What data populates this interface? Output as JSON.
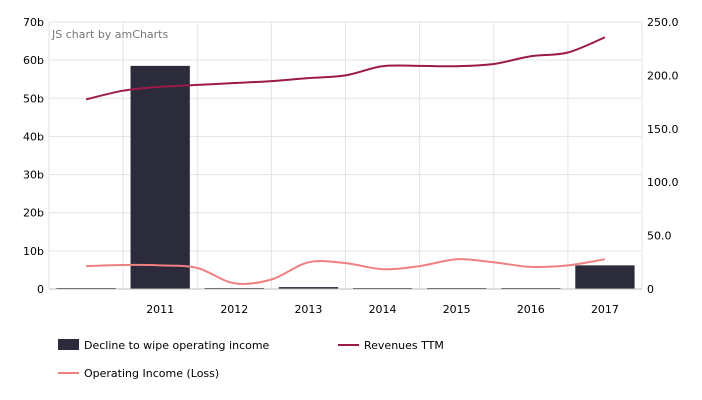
{
  "credit": "JS chart by amCharts",
  "chart_data": {
    "type": "bar",
    "categories": [
      "",
      "2011",
      "2012",
      "2013",
      "2014",
      "2015",
      "2016",
      "2017"
    ],
    "left_axis": {
      "range": [
        0,
        70
      ],
      "ticks": [
        0,
        10,
        20,
        30,
        40,
        50,
        60,
        70
      ],
      "tick_labels": [
        "0",
        "10b",
        "20b",
        "30b",
        "40b",
        "50b",
        "60b",
        "70b"
      ]
    },
    "right_axis": {
      "range": [
        0,
        250
      ],
      "ticks": [
        0,
        50,
        100,
        150,
        200,
        250
      ],
      "tick_labels": [
        "0",
        "50.0",
        "100.0",
        "150.0",
        "200.0",
        "250.0"
      ]
    },
    "series": [
      {
        "name": "Decline to wipe operating income",
        "kind": "bar",
        "axis": "left",
        "color": "#2b2b3b",
        "values": [
          0.1,
          58.5,
          0.1,
          0.5,
          0.2,
          0.2,
          0.2,
          6.2
        ]
      },
      {
        "name": "Revenues TTM",
        "kind": "line",
        "axis": "left",
        "color": "#9b1a4a",
        "x": [
          0,
          0.5,
          1,
          1.5,
          2,
          2.5,
          3,
          3.5,
          4,
          4.5,
          5,
          5.5,
          6,
          6.5,
          7
        ],
        "values": [
          49.7,
          52,
          53,
          53.5,
          54,
          54.5,
          55.3,
          56,
          58.4,
          58.5,
          58.4,
          59,
          61,
          62,
          66
        ]
      },
      {
        "name": "Operating Income (Loss)",
        "kind": "line",
        "axis": "left",
        "color": "#f08080",
        "x": [
          0,
          0.5,
          1,
          1.5,
          2,
          2.5,
          3,
          3.5,
          4,
          4.5,
          5,
          5.5,
          6,
          6.5,
          7
        ],
        "values": [
          6,
          6.3,
          6.2,
          5.5,
          1.5,
          2.5,
          7,
          6.8,
          5.2,
          6,
          7.8,
          7,
          5.8,
          6.2,
          7.8
        ]
      }
    ],
    "grid": true,
    "legend": "bottom"
  }
}
